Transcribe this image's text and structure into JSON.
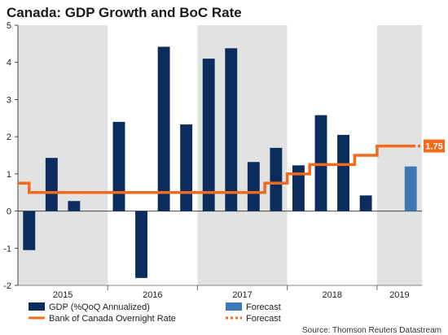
{
  "chart_data": {
    "type": "bar",
    "title": "Canada: GDP Growth and BoC Rate",
    "ylim": [
      -2,
      5
    ],
    "yticks": [
      -2,
      -1,
      0,
      1,
      2,
      3,
      4,
      5
    ],
    "grid": false,
    "shaded_years": [
      "2015",
      "2017",
      "2019"
    ],
    "year_labels": [
      "2015",
      "2016",
      "2017",
      "2018",
      "2019"
    ],
    "quarters": [
      "2015Q1",
      "2015Q2",
      "2015Q3",
      "2015Q4",
      "2016Q1",
      "2016Q2",
      "2016Q3",
      "2016Q4",
      "2017Q1",
      "2017Q2",
      "2017Q3",
      "2017Q4",
      "2018Q1",
      "2018Q2",
      "2018Q3",
      "2018Q4",
      "2019Q1",
      "2019Q2"
    ],
    "series": [
      {
        "name": "GDP (%QoQ Annualized)",
        "kind": "bar",
        "color": "#0b2d5e",
        "values": [
          -1.05,
          1.43,
          0.27,
          null,
          2.4,
          -1.8,
          4.42,
          2.33,
          4.1,
          4.38,
          1.32,
          1.7,
          1.23,
          2.58,
          2.05,
          0.42,
          null,
          null
        ]
      },
      {
        "name": "Forecast",
        "kind": "bar",
        "color": "#3d7ab5",
        "values": [
          null,
          null,
          null,
          null,
          null,
          null,
          null,
          null,
          null,
          null,
          null,
          null,
          null,
          null,
          null,
          null,
          null,
          1.2
        ]
      },
      {
        "name": "Bank of Canada Overnight Rate",
        "kind": "step",
        "color": "#f26a1b",
        "steps": [
          {
            "from": 0.0,
            "to": 0.5,
            "value": 0.75
          },
          {
            "from": 0.5,
            "to": 11.0,
            "value": 0.5
          },
          {
            "from": 11.0,
            "to": 12.0,
            "value": 0.75
          },
          {
            "from": 12.0,
            "to": 13.0,
            "value": 1.0
          },
          {
            "from": 13.0,
            "to": 15.0,
            "value": 1.25
          },
          {
            "from": 15.0,
            "to": 16.0,
            "value": 1.5
          },
          {
            "from": 16.0,
            "to": 17.6,
            "value": 1.75
          }
        ]
      },
      {
        "name": "Forecast",
        "kind": "step-dotted",
        "color": "#f26a1b",
        "steps": [
          {
            "from": 17.6,
            "to": 18.0,
            "value": 1.75
          }
        ]
      }
    ],
    "callout": {
      "text": "1.75",
      "value": 1.75,
      "color": "#f26a1b"
    }
  },
  "legend": {
    "gdp": "GDP (%QoQ Annualized)",
    "gdp_forecast": "Forecast",
    "rate": "Bank of Canada Overnight Rate",
    "rate_forecast": "Forecast"
  },
  "source": "Source: Thomson Reuters Datastream"
}
